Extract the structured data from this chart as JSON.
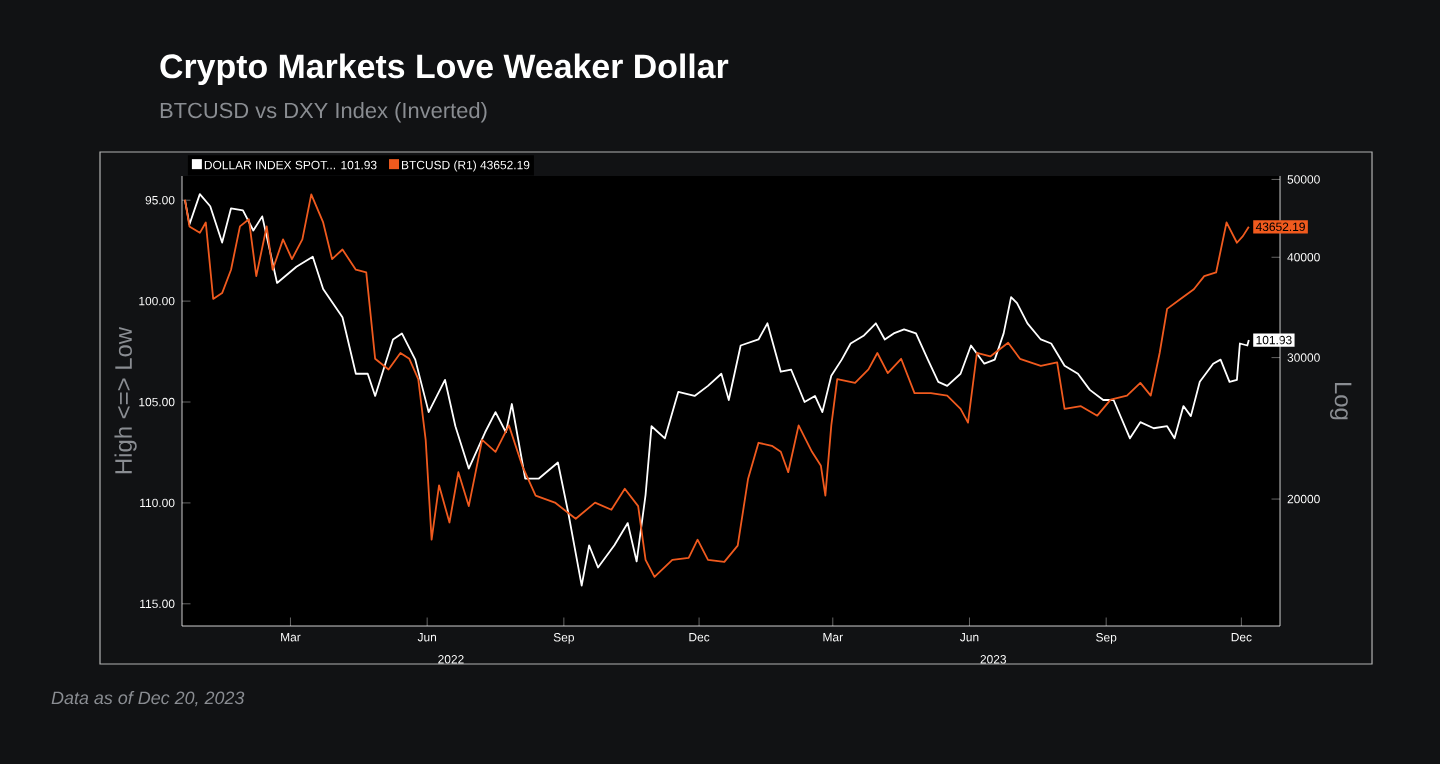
{
  "chart_data": {
    "type": "line",
    "title": "Crypto Markets Love Weaker Dollar",
    "subtitle": "BTCUSD vs DXY Index (Inverted)",
    "ylabel": "High <=> Low",
    "y2label": "Log",
    "annotations": [
      "Data as of Dec 20, 2023",
      "2022",
      "2023"
    ],
    "xlim": [
      "2022-01-01",
      "2024-01-10"
    ],
    "xticks": [
      {
        "value": "2022-03-15",
        "label": "Mar"
      },
      {
        "value": "2022-06-15",
        "label": "Jun"
      },
      {
        "value": "2022-09-15",
        "label": "Sep"
      },
      {
        "value": "2022-12-15",
        "label": "Dec"
      },
      {
        "value": "2023-03-15",
        "label": "Mar"
      },
      {
        "value": "2023-06-15",
        "label": "Jun"
      },
      {
        "value": "2023-09-15",
        "label": "Sep"
      },
      {
        "value": "2023-12-15",
        "label": "Dec"
      }
    ],
    "ylim": [
      116.1,
      93.8
    ],
    "yticks": [
      {
        "value": 95,
        "label": "95.00"
      },
      {
        "value": 100,
        "label": "100.00"
      },
      {
        "value": 105,
        "label": "105.00"
      },
      {
        "value": 110,
        "label": "110.00"
      },
      {
        "value": 115,
        "label": "115.00"
      }
    ],
    "y2lim": [
      13900,
      50500
    ],
    "y2ticks": [
      20000,
      30000,
      40000,
      50000
    ],
    "log": "y2",
    "legend": "top left",
    "marker": "none",
    "line_style": "solid",
    "series": [
      {
        "name": "DOLLAR INDEX SPOT... 101.93",
        "color": "#ffffff",
        "axis": "y",
        "x": [
          "2022-01-03",
          "2022-01-06",
          "2022-01-13",
          "2022-01-20",
          "2022-01-28",
          "2022-02-03",
          "2022-02-11",
          "2022-02-18",
          "2022-02-24",
          "2022-03-06",
          "2022-03-19",
          "2022-03-30",
          "2022-04-06",
          "2022-04-19",
          "2022-04-28",
          "2022-05-06",
          "2022-05-11",
          "2022-05-23",
          "2022-05-29",
          "2022-06-07",
          "2022-06-16",
          "2022-06-27",
          "2022-07-04",
          "2022-07-13",
          "2022-07-24",
          "2022-07-31",
          "2022-08-07",
          "2022-08-11",
          "2022-08-20",
          "2022-08-29",
          "2022-09-11",
          "2022-09-18",
          "2022-09-27",
          "2022-10-02",
          "2022-10-08",
          "2022-10-19",
          "2022-10-28",
          "2022-11-03",
          "2022-11-09",
          "2022-11-13",
          "2022-11-22",
          "2022-12-01",
          "2022-12-12",
          "2022-12-21",
          "2022-12-30",
          "2023-01-04",
          "2023-01-12",
          "2023-01-24",
          "2023-01-30",
          "2023-02-08",
          "2023-02-15",
          "2023-02-24",
          "2023-03-03",
          "2023-03-08",
          "2023-03-14",
          "2023-03-21",
          "2023-03-27",
          "2023-04-05",
          "2023-04-13",
          "2023-04-19",
          "2023-04-25",
          "2023-05-02",
          "2023-05-10",
          "2023-05-18",
          "2023-05-25",
          "2023-05-31",
          "2023-06-09",
          "2023-06-16",
          "2023-06-25",
          "2023-07-02",
          "2023-07-08",
          "2023-07-13",
          "2023-07-17",
          "2023-07-24",
          "2023-08-02",
          "2023-08-09",
          "2023-08-18",
          "2023-08-27",
          "2023-09-04",
          "2023-09-13",
          "2023-09-20",
          "2023-10-01",
          "2023-10-08",
          "2023-10-17",
          "2023-10-26",
          "2023-10-31",
          "2023-11-06",
          "2023-11-11",
          "2023-11-17",
          "2023-11-26",
          "2023-12-01",
          "2023-12-07",
          "2023-12-12",
          "2023-12-14",
          "2023-12-19",
          "2023-12-20"
        ],
        "values": [
          95.0,
          96.2,
          94.7,
          95.3,
          97.1,
          95.4,
          95.5,
          96.5,
          95.8,
          99.1,
          98.3,
          97.8,
          99.4,
          100.8,
          103.6,
          103.6,
          104.7,
          101.9,
          101.6,
          102.9,
          105.5,
          103.9,
          106.2,
          108.3,
          106.5,
          105.5,
          106.5,
          105.1,
          108.8,
          108.8,
          108.0,
          110.5,
          114.1,
          112.1,
          113.2,
          112.1,
          111.0,
          112.9,
          109.6,
          106.2,
          106.8,
          104.5,
          104.7,
          104.2,
          103.6,
          104.9,
          102.2,
          101.9,
          101.1,
          103.5,
          103.4,
          105.0,
          104.7,
          105.5,
          103.7,
          102.9,
          102.1,
          101.7,
          101.1,
          101.9,
          101.6,
          101.4,
          101.6,
          102.9,
          104.0,
          104.2,
          103.6,
          102.2,
          103.1,
          102.9,
          101.6,
          99.8,
          100.1,
          101.1,
          101.9,
          102.1,
          103.2,
          103.6,
          104.4,
          104.9,
          104.9,
          106.8,
          106.0,
          106.3,
          106.2,
          106.8,
          105.2,
          105.7,
          104.0,
          103.1,
          102.9,
          104.0,
          103.9,
          102.1,
          102.2,
          101.93
        ],
        "value_labels": [
          null,
          null,
          null,
          null,
          null,
          null,
          null,
          null,
          null,
          null,
          null,
          null,
          null,
          null,
          null,
          null,
          null,
          null,
          null,
          null,
          null,
          null,
          null,
          null,
          null,
          null,
          null,
          null,
          null,
          null,
          null,
          null,
          null,
          null,
          null,
          null,
          null,
          null,
          null,
          null,
          null,
          null,
          null,
          null,
          null,
          null,
          null,
          null,
          null,
          null,
          null,
          null,
          null,
          null,
          null,
          null,
          null,
          null,
          null,
          null,
          null,
          null,
          null,
          null,
          null,
          null,
          null,
          null,
          null,
          null,
          null,
          null,
          null,
          null,
          null,
          null,
          null,
          null,
          null,
          null,
          null,
          null,
          null,
          null,
          null,
          null,
          null,
          null,
          null,
          null,
          null,
          null,
          null,
          null,
          null,
          "101.93"
        ]
      },
      {
        "name": "BTCUSD (R1) 43652.19",
        "color": "#f05a1e",
        "axis": "y2",
        "x": [
          "2022-01-03",
          "2022-01-06",
          "2022-01-13",
          "2022-01-17",
          "2022-01-22",
          "2022-01-28",
          "2022-02-03",
          "2022-02-09",
          "2022-02-15",
          "2022-02-20",
          "2022-02-27",
          "2022-03-03",
          "2022-03-10",
          "2022-03-16",
          "2022-03-23",
          "2022-03-29",
          "2022-04-06",
          "2022-04-12",
          "2022-04-19",
          "2022-04-28",
          "2022-05-05",
          "2022-05-11",
          "2022-05-20",
          "2022-05-28",
          "2022-06-03",
          "2022-06-09",
          "2022-06-14",
          "2022-06-18",
          "2022-06-23",
          "2022-06-30",
          "2022-07-06",
          "2022-07-13",
          "2022-07-22",
          "2022-07-31",
          "2022-08-09",
          "2022-08-18",
          "2022-08-27",
          "2022-09-09",
          "2022-09-23",
          "2022-10-06",
          "2022-10-17",
          "2022-10-26",
          "2022-11-04",
          "2022-11-09",
          "2022-11-15",
          "2022-11-27",
          "2022-12-08",
          "2022-12-14",
          "2022-12-21",
          "2023-01-01",
          "2023-01-10",
          "2023-01-17",
          "2023-01-24",
          "2023-02-02",
          "2023-02-08",
          "2023-02-13",
          "2023-02-20",
          "2023-03-01",
          "2023-03-07",
          "2023-03-10",
          "2023-03-14",
          "2023-03-18",
          "2023-03-30",
          "2023-04-08",
          "2023-04-14",
          "2023-04-21",
          "2023-04-30",
          "2023-05-09",
          "2023-05-20",
          "2023-05-31",
          "2023-06-09",
          "2023-06-14",
          "2023-06-20",
          "2023-06-29",
          "2023-07-11",
          "2023-07-19",
          "2023-08-02",
          "2023-08-13",
          "2023-08-18",
          "2023-08-29",
          "2023-09-09",
          "2023-09-18",
          "2023-09-29",
          "2023-10-08",
          "2023-10-15",
          "2023-10-21",
          "2023-10-26",
          "2023-11-04",
          "2023-11-13",
          "2023-11-20",
          "2023-11-28",
          "2023-12-05",
          "2023-12-12",
          "2023-12-16",
          "2023-12-20"
        ],
        "values": [
          47200,
          43700,
          42900,
          44200,
          35500,
          36100,
          38600,
          43700,
          44600,
          37900,
          43700,
          38600,
          42100,
          39800,
          42100,
          47900,
          44200,
          39800,
          40900,
          38600,
          38300,
          29900,
          29000,
          30400,
          29900,
          28200,
          23700,
          17800,
          20800,
          18700,
          21600,
          19600,
          23700,
          22900,
          24700,
          22000,
          20200,
          19800,
          18900,
          19800,
          19400,
          20600,
          19600,
          16800,
          16000,
          16800,
          16900,
          17800,
          16800,
          16700,
          17500,
          21200,
          23500,
          23300,
          22900,
          21600,
          24700,
          22900,
          22000,
          20200,
          24700,
          28200,
          27900,
          29000,
          30400,
          28700,
          29900,
          27100,
          27100,
          26900,
          25900,
          24900,
          30400,
          30100,
          31300,
          29900,
          29300,
          29600,
          25900,
          26100,
          25400,
          26600,
          26900,
          27900,
          26900,
          30400,
          34500,
          35500,
          36500,
          37900,
          38300,
          44200,
          41700,
          42500,
          43652.19
        ],
        "value_labels": [
          null,
          null,
          null,
          null,
          null,
          null,
          null,
          null,
          null,
          null,
          null,
          null,
          null,
          null,
          null,
          null,
          null,
          null,
          null,
          null,
          null,
          null,
          null,
          null,
          null,
          null,
          null,
          null,
          null,
          null,
          null,
          null,
          null,
          null,
          null,
          null,
          null,
          null,
          null,
          null,
          null,
          null,
          null,
          null,
          null,
          null,
          null,
          null,
          null,
          null,
          null,
          null,
          null,
          null,
          null,
          null,
          null,
          null,
          null,
          null,
          null,
          null,
          null,
          null,
          null,
          null,
          null,
          null,
          null,
          null,
          null,
          null,
          null,
          null,
          null,
          null,
          null,
          null,
          null,
          null,
          null,
          null,
          null,
          null,
          null,
          null,
          null,
          null,
          null,
          null,
          null,
          null,
          null,
          null,
          "43652.19"
        ]
      }
    ]
  }
}
